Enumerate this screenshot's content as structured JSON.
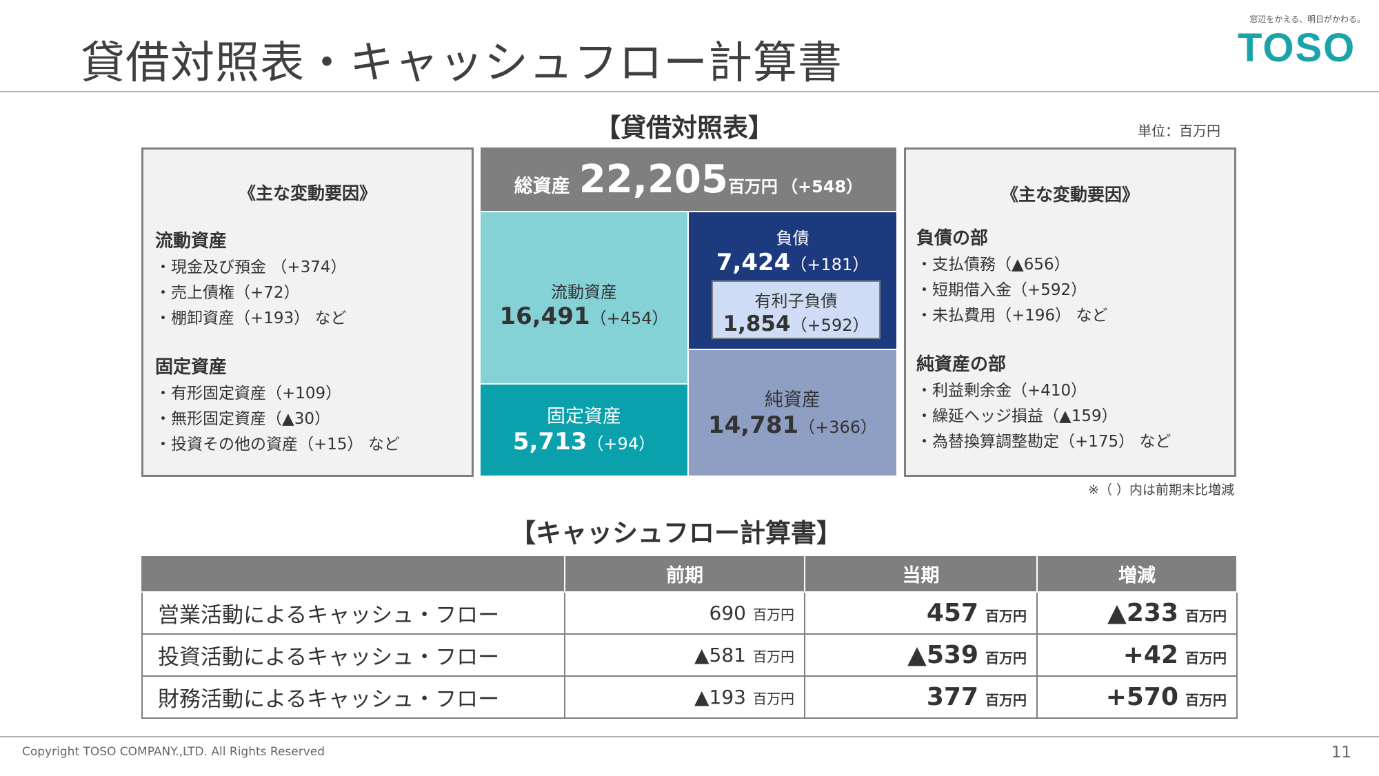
{
  "header": {
    "title": "貸借対照表・キャッシュフロー計算書",
    "tagline": "窓辺をかえる、明日がかわる。",
    "logo_text": "TOSO",
    "logo_color": "#1aa3a8"
  },
  "balance_sheet": {
    "section_title": "【貸借対照表】",
    "unit_note": "単位：百万円",
    "total": {
      "label": "総資産",
      "value": "22,205",
      "unit": "百万円",
      "diff": "（+548）"
    },
    "current_assets": {
      "label": "流動資産",
      "value": "16,491",
      "diff": "（+454）",
      "color": "#84d1d6"
    },
    "fixed_assets": {
      "label": "固定資産",
      "value": "5,713",
      "diff": "（+94）",
      "color": "#0aa0ac"
    },
    "liabilities": {
      "label": "負債",
      "value": "7,424",
      "diff": "（+181）",
      "color": "#1e3a7f"
    },
    "interest_debt": {
      "label": "有利子負債",
      "value": "1,854",
      "diff": "（+592）",
      "color": "#cfdcf5"
    },
    "net_assets": {
      "label": "純資産",
      "value": "14,781",
      "diff": "（+366）",
      "color": "#8f9ec3"
    },
    "footnote": "※（ ）内は前期末比増減"
  },
  "left_factors": {
    "heading": "《主な変動要因》",
    "group1": {
      "title": "流動資産",
      "items": [
        "・現金及び預金 （+374）",
        "・売上債権（+72）",
        "・棚卸資産（+193） など"
      ]
    },
    "group2": {
      "title": "固定資産",
      "items": [
        "・有形固定資産（+109）",
        "・無形固定資産（▲30）",
        "・投資その他の資産（+15） など"
      ]
    }
  },
  "right_factors": {
    "heading": "《主な変動要因》",
    "group1": {
      "title": "負債の部",
      "items": [
        "・支払債務（▲656）",
        "・短期借入金（+592）",
        "・未払費用（+196） など"
      ]
    },
    "group2": {
      "title": "純資産の部",
      "items": [
        "・利益剰余金（+410）",
        "・繰延ヘッジ損益（▲159）",
        "・為替換算調整勘定（+175） など"
      ]
    }
  },
  "cash_flow": {
    "section_title": "【キャッシュフロー計算書】",
    "columns": [
      "",
      "前期",
      "当期",
      "増減"
    ],
    "unit": "百万円",
    "rows": [
      {
        "label": "営業活動によるキャッシュ・フロー",
        "prev": "690",
        "curr": "457",
        "diff": "▲233"
      },
      {
        "label": "投資活動によるキャッシュ・フロー",
        "prev": "▲581",
        "curr": "▲539",
        "diff": "+42"
      },
      {
        "label": "財務活動によるキャッシュ・フロー",
        "prev": "▲193",
        "curr": "377",
        "diff": "+570"
      }
    ]
  },
  "footer": {
    "copyright": "Copyright TOSO COMPANY.,LTD. All Rights Reserved",
    "page_number": "11"
  }
}
